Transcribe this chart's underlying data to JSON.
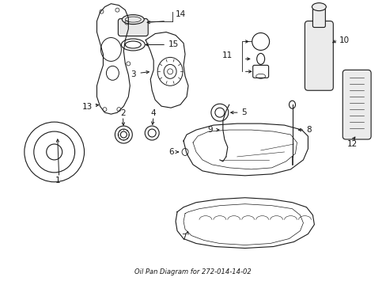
{
  "title": "Oil Pan Diagram for 272-014-14-02",
  "bg_color": "#ffffff",
  "line_color": "#1a1a1a",
  "fig_width": 4.89,
  "fig_height": 3.6,
  "dpi": 100
}
